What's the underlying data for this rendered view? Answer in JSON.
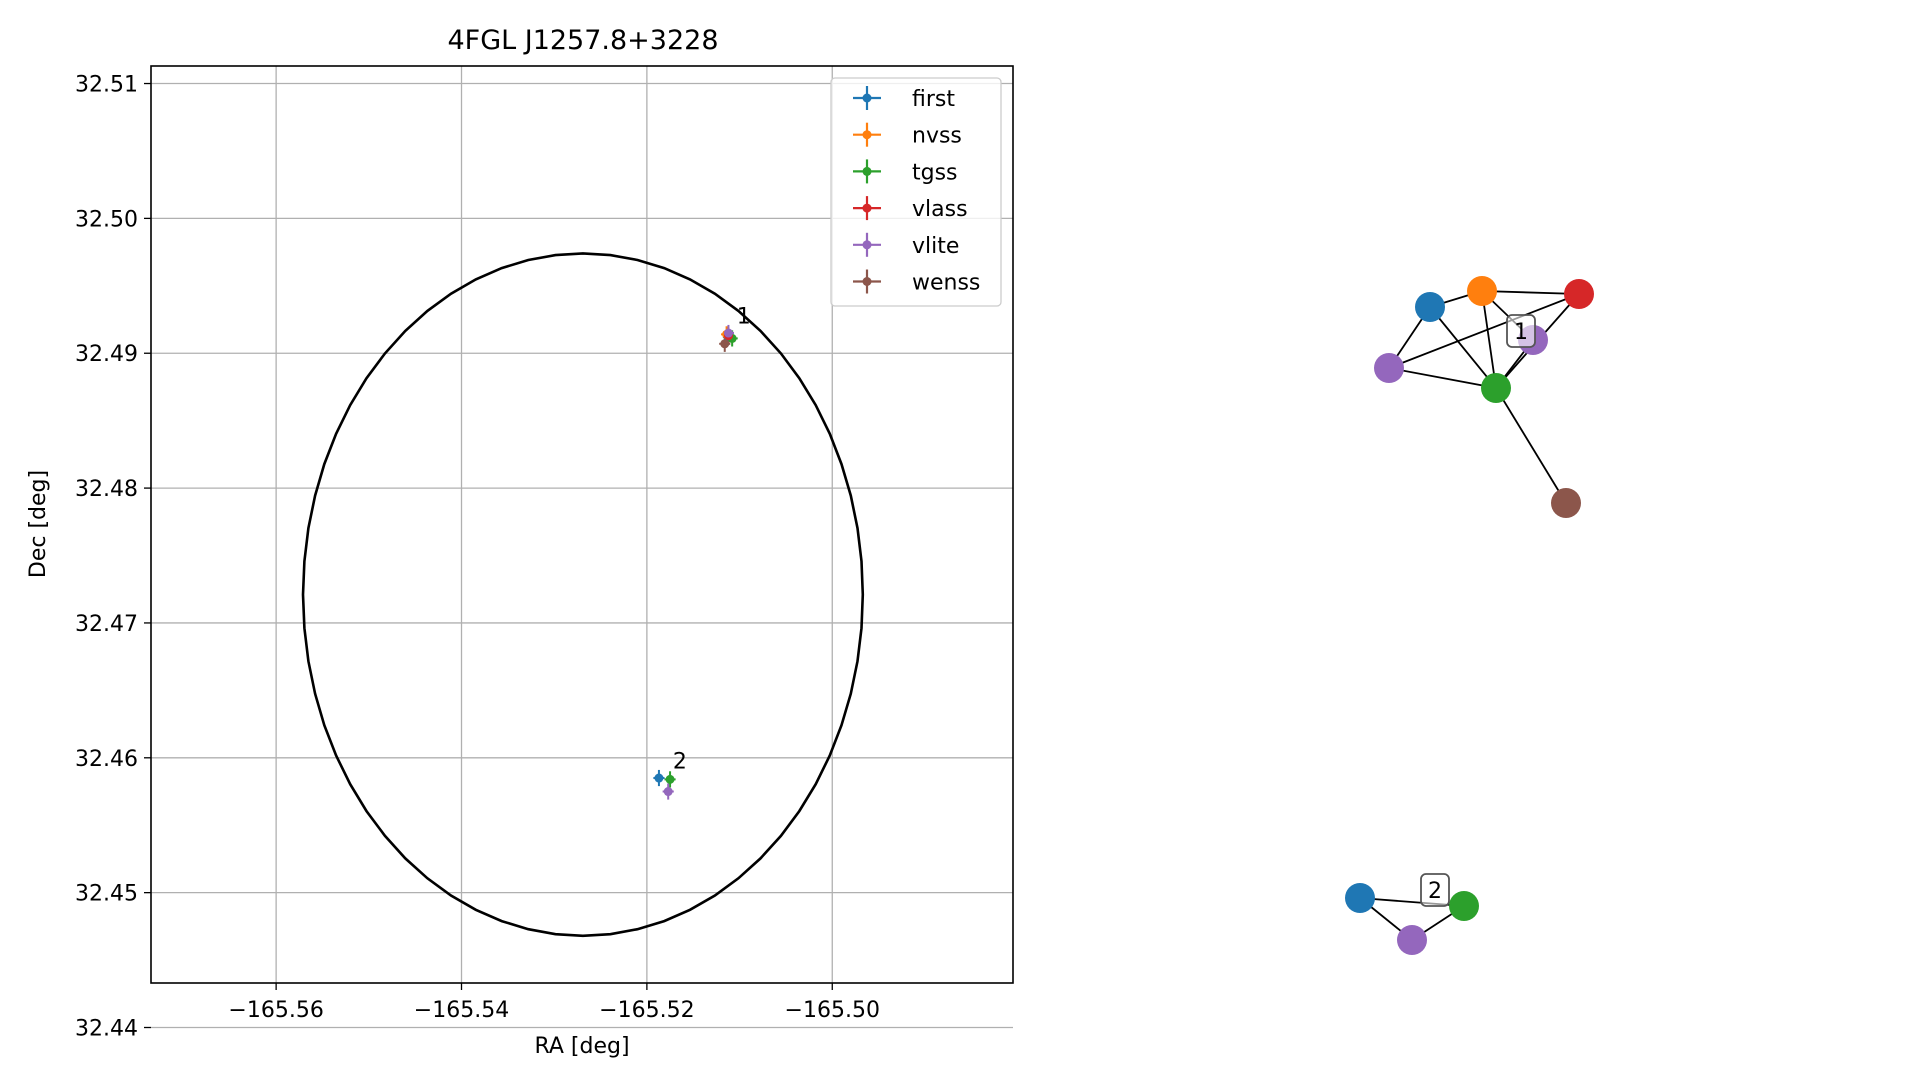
{
  "chart_data": [
    {
      "type": "scatter",
      "title": "4FGL J1257.8+3228",
      "xlabel": "RA [deg]",
      "ylabel": "Dec [deg]",
      "xlim": [
        -165.5735,
        -165.4805
      ],
      "ylim": [
        32.4433,
        32.5113
      ],
      "xticks": [
        {
          "value": -165.56,
          "label": "−165.56"
        },
        {
          "value": -165.54,
          "label": "−165.54"
        },
        {
          "value": -165.52,
          "label": "−165.52"
        },
        {
          "value": -165.5,
          "label": "−165.50"
        }
      ],
      "yticks": [
        {
          "value": 32.44,
          "label": "32.44"
        },
        {
          "value": 32.45,
          "label": "32.45"
        },
        {
          "value": 32.46,
          "label": "32.46"
        },
        {
          "value": 32.47,
          "label": "32.47"
        },
        {
          "value": 32.48,
          "label": "32.48"
        },
        {
          "value": 32.49,
          "label": "32.49"
        },
        {
          "value": 32.5,
          "label": "32.50"
        },
        {
          "value": 32.51,
          "label": "32.51"
        }
      ],
      "grid": true,
      "legend_position": "top-right",
      "ellipse": {
        "center_ra": -165.5269,
        "center_dec": 32.4721,
        "semi_ra": 0.0302,
        "semi_dec": 0.0253,
        "color": "#000000"
      },
      "series": [
        {
          "name": "first",
          "color": "#1f77b4",
          "points": [
            {
              "ra": -165.5112,
              "dec": 32.4912
            },
            {
              "ra": -165.5187,
              "dec": 32.4585
            }
          ]
        },
        {
          "name": "nvss",
          "color": "#ff7f0e",
          "points": [
            {
              "ra": -165.5114,
              "dec": 32.4914
            }
          ]
        },
        {
          "name": "tgss",
          "color": "#2ca02c",
          "points": [
            {
              "ra": -165.5108,
              "dec": 32.4911
            },
            {
              "ra": -165.5175,
              "dec": 32.4584
            }
          ]
        },
        {
          "name": "vlass",
          "color": "#d62728",
          "points": [
            {
              "ra": -165.5112,
              "dec": 32.4913
            }
          ]
        },
        {
          "name": "vlite",
          "color": "#9467bd",
          "points": [
            {
              "ra": -165.5112,
              "dec": 32.4915
            },
            {
              "ra": -165.5177,
              "dec": 32.4575
            }
          ]
        },
        {
          "name": "wenss",
          "color": "#8c564b",
          "points": [
            {
              "ra": -165.5116,
              "dec": 32.4907
            }
          ]
        }
      ],
      "annotations": [
        {
          "text": "1",
          "ra": -165.5103,
          "dec": 32.4922
        },
        {
          "text": "2",
          "ra": -165.5172,
          "dec": 32.4592
        }
      ]
    },
    {
      "type": "network",
      "groups": [
        {
          "label": "1",
          "nodes": [
            {
              "name": "first",
              "color": "#1f77b4"
            },
            {
              "name": "nvss",
              "color": "#ff7f0e"
            },
            {
              "name": "vlass",
              "color": "#d62728"
            },
            {
              "name": "vlite",
              "color": "#9467bd"
            },
            {
              "name": "vlite",
              "color": "#9467bd"
            },
            {
              "name": "tgss",
              "color": "#2ca02c"
            },
            {
              "name": "wenss",
              "color": "#8c564b"
            }
          ],
          "edges": [
            [
              0,
              1
            ],
            [
              0,
              5
            ],
            [
              0,
              4
            ],
            [
              1,
              2
            ],
            [
              1,
              5
            ],
            [
              1,
              3
            ],
            [
              2,
              4
            ],
            [
              2,
              5
            ],
            [
              3,
              5
            ],
            [
              4,
              5
            ],
            [
              5,
              6
            ]
          ]
        },
        {
          "label": "2",
          "nodes": [
            {
              "name": "first",
              "color": "#1f77b4"
            },
            {
              "name": "tgss",
              "color": "#2ca02c"
            },
            {
              "name": "vlite",
              "color": "#9467bd"
            }
          ],
          "edges": [
            [
              0,
              1
            ],
            [
              0,
              2
            ],
            [
              1,
              2
            ]
          ]
        }
      ]
    }
  ]
}
